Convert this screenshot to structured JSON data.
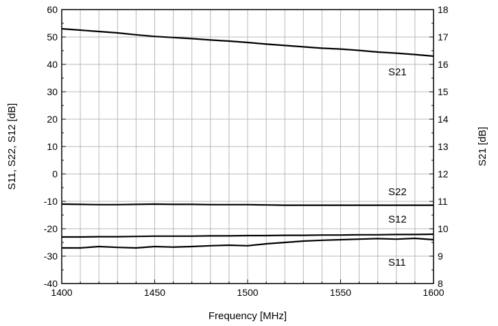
{
  "chart_data": {
    "type": "line",
    "xlabel": "Frequency [MHz]",
    "ylabel": "S11, S22, S12 [dB]",
    "y2label": "S21 [dB]",
    "xlim": [
      1400,
      1600
    ],
    "ylim": [
      -40,
      60
    ],
    "y2lim": [
      8,
      18
    ],
    "xticks": [
      1400,
      1450,
      1500,
      1550,
      1600
    ],
    "yticks": [
      -40,
      -30,
      -20,
      -10,
      0,
      10,
      20,
      30,
      40,
      50,
      60
    ],
    "y2ticks": [
      8,
      9,
      10,
      11,
      12,
      13,
      14,
      15,
      16,
      17,
      18
    ],
    "grid": true,
    "x": [
      1400,
      1410,
      1420,
      1430,
      1440,
      1450,
      1460,
      1470,
      1480,
      1490,
      1500,
      1510,
      1520,
      1530,
      1540,
      1550,
      1560,
      1570,
      1580,
      1590,
      1600
    ],
    "series": [
      {
        "name": "S21",
        "axis": "right",
        "values": [
          17.3,
          17.25,
          17.2,
          17.15,
          17.08,
          17.02,
          16.98,
          16.94,
          16.89,
          16.85,
          16.8,
          16.74,
          16.69,
          16.64,
          16.59,
          16.56,
          16.51,
          16.45,
          16.41,
          16.36,
          16.3
        ]
      },
      {
        "name": "S22",
        "axis": "left",
        "values": [
          -11.0,
          -11.1,
          -11.2,
          -11.2,
          -11.1,
          -11.0,
          -11.1,
          -11.1,
          -11.2,
          -11.2,
          -11.2,
          -11.3,
          -11.4,
          -11.4,
          -11.4,
          -11.4,
          -11.4,
          -11.4,
          -11.4,
          -11.4,
          -11.4
        ]
      },
      {
        "name": "S12",
        "axis": "left",
        "values": [
          -23.0,
          -23.0,
          -22.9,
          -22.9,
          -22.8,
          -22.7,
          -22.7,
          -22.7,
          -22.6,
          -22.6,
          -22.5,
          -22.5,
          -22.4,
          -22.4,
          -22.3,
          -22.3,
          -22.2,
          -22.2,
          -22.1,
          -22.1,
          -22.0
        ]
      },
      {
        "name": "S11",
        "axis": "left",
        "values": [
          -27.0,
          -27.0,
          -26.5,
          -26.8,
          -27.0,
          -26.5,
          -26.7,
          -26.5,
          -26.2,
          -26.0,
          -26.2,
          -25.5,
          -25.0,
          -24.5,
          -24.2,
          -24.0,
          -23.8,
          -23.6,
          -23.8,
          -23.5,
          -24.0
        ]
      }
    ]
  }
}
